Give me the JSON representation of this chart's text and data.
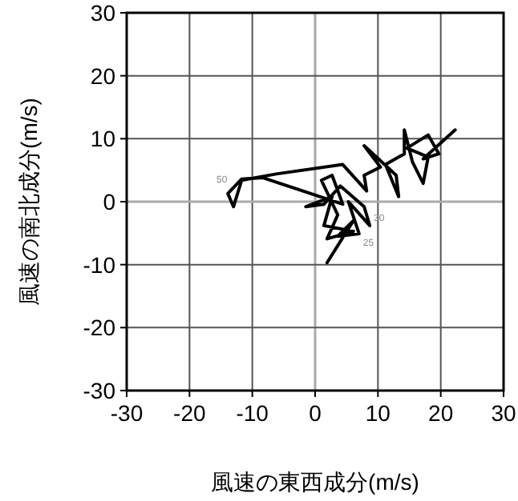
{
  "chart_data": {
    "type": "line",
    "xlabel": "風速の東西成分(m/s)",
    "ylabel": "風速の南北成分(m/s)",
    "xlim": [
      -30,
      30
    ],
    "ylim": [
      -30,
      30
    ],
    "xticks": [
      -30,
      -20,
      -10,
      0,
      10,
      20,
      30
    ],
    "yticks": [
      -30,
      -20,
      -10,
      0,
      10,
      20,
      30
    ],
    "grid": true,
    "marker": "none",
    "line_style": "solid",
    "annotations": [
      {
        "text": "50",
        "x": -11.7,
        "y": 3.6
      },
      {
        "text": "30",
        "x": 7.8,
        "y": -0.8
      },
      {
        "text": "25",
        "x": 6.1,
        "y": -4.7
      }
    ],
    "series": [
      {
        "color": "#000000",
        "x": [
          1.9,
          6.1,
          3.6,
          7.0,
          5.3,
          8.7,
          7.8,
          4.0,
          1.4,
          -1.5,
          2.7,
          1.4,
          6.1,
          1.9,
          3.6,
          1.0,
          2.7,
          4.4,
          -8.3,
          -11.7,
          -13.9,
          -13.0,
          -11.7,
          -6.2,
          4.4,
          8.2,
          7.8,
          10.4,
          7.8,
          12.9,
          13.3,
          11.2,
          14.2,
          14.2,
          15.5,
          17.2,
          18.0,
          14.6,
          18.0,
          19.7,
          17.2,
          22.3
        ],
        "values": [
          -9.7,
          -3.0,
          -5.5,
          -5.1,
          0,
          -3.8,
          -0.8,
          2.5,
          -0.4,
          -0.8,
          0.8,
          -3.8,
          -4.7,
          -5.9,
          -2.1,
          3.4,
          4.2,
          -0.4,
          3.8,
          3.6,
          1.3,
          -0.8,
          3.4,
          4.4,
          5.9,
          1.7,
          4.2,
          5.5,
          8.9,
          4.2,
          0.8,
          5.9,
          7.6,
          11.4,
          6.3,
          2.9,
          7.1,
          8.5,
          10.6,
          7.6,
          6.8,
          11.4
        ]
      }
    ]
  }
}
